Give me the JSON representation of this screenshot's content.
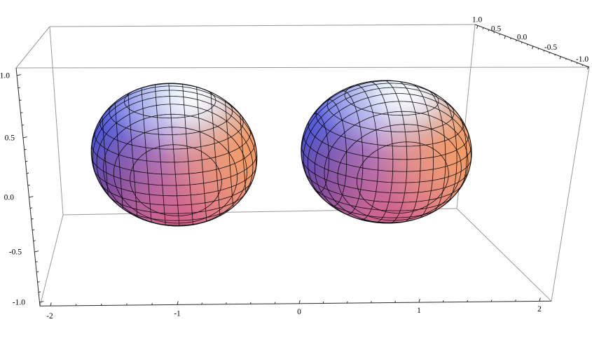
{
  "plot": {
    "background": "#ffffff",
    "box_line_color": "#9a9a9a",
    "axis_line_color": "#2b2b2b",
    "tick_color": "#2b2b2b",
    "label_color": "#000000",
    "x_tick_labels": [
      "-2",
      "-1",
      "0",
      "1",
      "2"
    ],
    "y_tick_labels": [
      "1.0",
      "0.5",
      "0.0",
      "-0.5",
      "-1.0"
    ],
    "z_tick_labels": [
      "1.0",
      "0.5",
      "0.0",
      "-0.5",
      "-1.0"
    ]
  },
  "chart_data": {
    "type": "3d-surface",
    "title": "",
    "xlabel": "",
    "ylabel": "",
    "zlabel": "",
    "x_range": [
      -2,
      2
    ],
    "y_range": [
      -1,
      1
    ],
    "z_range": [
      -1,
      1
    ],
    "x_ticks": [
      -2,
      -1,
      0,
      1,
      2
    ],
    "y_ticks": [
      1.0,
      0.5,
      0.0,
      -0.5,
      -1.0
    ],
    "z_ticks": [
      1.0,
      0.5,
      0.0,
      -0.5,
      -1.0
    ],
    "minor_ticks_per_major": 4,
    "grid": false,
    "legend": null,
    "surfaces": [
      {
        "kind": "sphere",
        "center": [
          -1,
          0,
          0
        ],
        "radius": 0.6
      },
      {
        "kind": "sphere",
        "center": [
          1,
          0,
          0
        ],
        "radius": 0.6
      }
    ],
    "mesh": {
      "style": "contour planes at constant x, y, z",
      "plane_spacing": 0.1,
      "color": "#000000"
    },
    "shading": {
      "upper_left_blue": "#4c5ae0",
      "top_cyan_highlight": "#ddf1fb",
      "specular_white": "#ffffff",
      "right_orange": "#f49a62",
      "bottom_pink": "#d95c84",
      "lower_left_purple": "#43379f",
      "center_lilac": "#bfa3e4",
      "base_right_peach": "#f2b488"
    }
  }
}
